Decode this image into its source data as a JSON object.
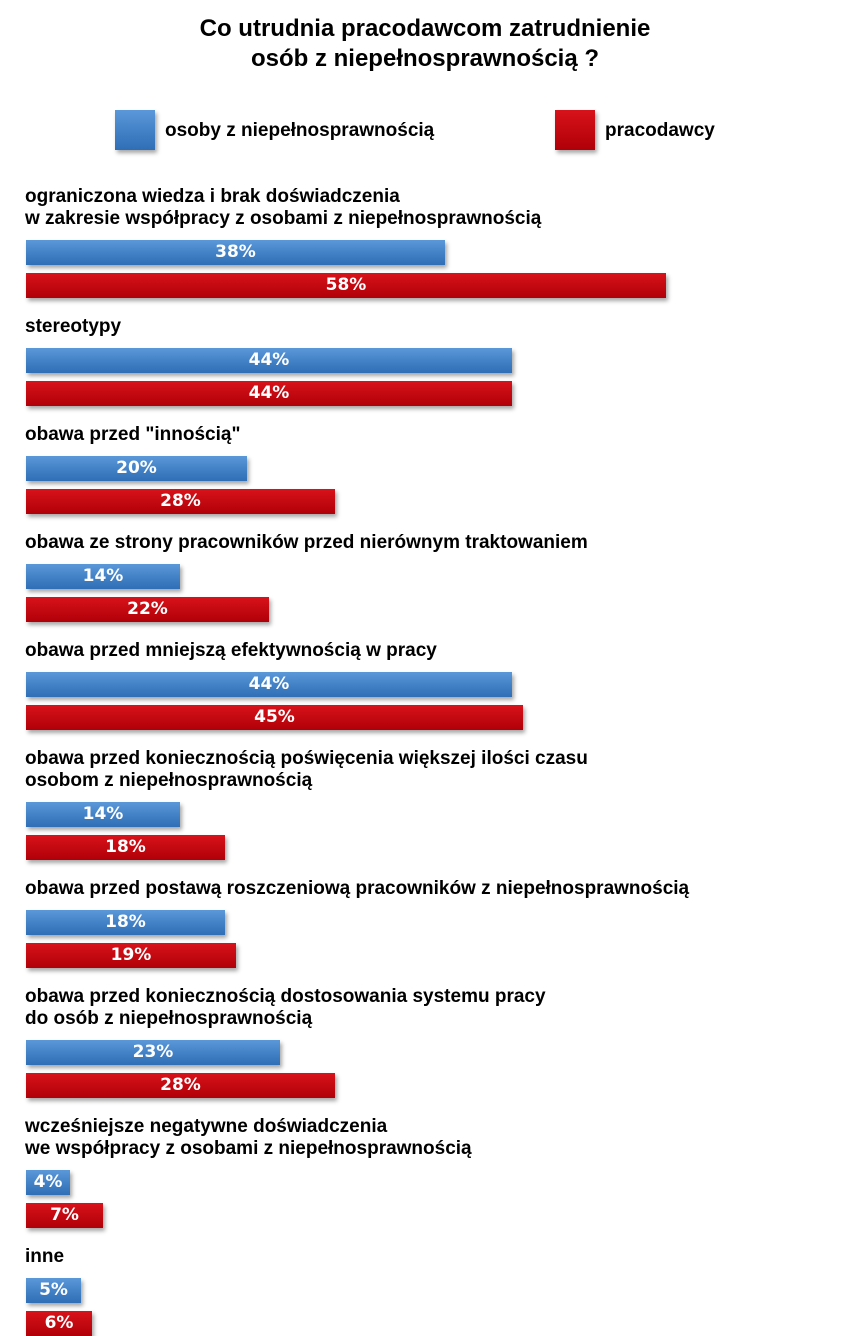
{
  "chart_data": {
    "type": "bar",
    "orientation": "horizontal",
    "title": [
      "Co utrudnia pracodawcom zatrudnienie",
      "osób z niepełnosprawnością ?"
    ],
    "legend_placement": "top",
    "series": [
      {
        "name": "osoby z niepełnosprawnością",
        "color": "#3b7bc6",
        "values": [
          38,
          44,
          20,
          14,
          44,
          14,
          18,
          23,
          4,
          5
        ]
      },
      {
        "name": "pracodawcy",
        "color": "#c8000a",
        "values": [
          58,
          44,
          28,
          22,
          45,
          18,
          19,
          28,
          7,
          6
        ]
      }
    ],
    "categories": [
      [
        "ograniczona wiedza i brak doświadczenia",
        "w zakresie współpracy z osobami z niepełnosprawnością"
      ],
      [
        "stereotypy"
      ],
      [
        "obawa przed \"innością\""
      ],
      [
        "obawa ze strony pracowników przed nierównym traktowaniem"
      ],
      [
        "obawa przed mniejszą efektywnością w pracy"
      ],
      [
        "obawa przed koniecznością poświęcenia większej ilości czasu",
        "osobom z niepełnosprawnością"
      ],
      [
        "obawa przed postawą roszczeniową pracowników z niepełnosprawnością"
      ],
      [
        "obawa przed koniecznością dostosowania systemu pracy",
        "do osób z niepełnosprawnością"
      ],
      [
        "wcześniejsze negatywne doświadczenia",
        "we współpracy z osobami z niepełnosprawnością"
      ],
      [
        "inne"
      ]
    ],
    "value_suffix": "%",
    "xlim": [
      0,
      58
    ],
    "grid": false,
    "xlabel": "",
    "ylabel": ""
  }
}
